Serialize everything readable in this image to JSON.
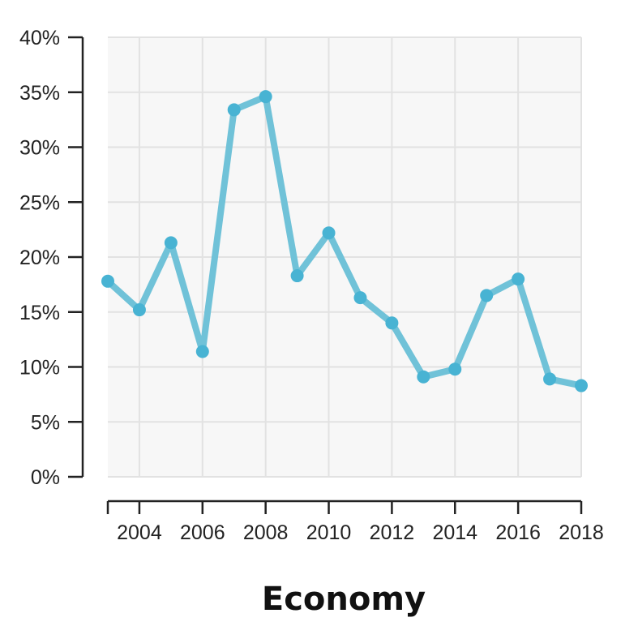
{
  "chart_data": {
    "type": "line",
    "title": "Economy",
    "xlabel": "",
    "ylabel": "",
    "x": [
      2003,
      2004,
      2005,
      2006,
      2007,
      2008,
      2009,
      2010,
      2011,
      2012,
      2013,
      2014,
      2015,
      2016,
      2017,
      2018
    ],
    "series": [
      {
        "values": [
          17.8,
          15.2,
          21.3,
          11.4,
          33.4,
          34.6,
          18.3,
          22.2,
          16.3,
          14.0,
          9.1,
          9.8,
          16.5,
          18.0,
          8.9,
          8.3
        ]
      }
    ],
    "xlim": [
      2003,
      2018
    ],
    "ylim": [
      0,
      40
    ],
    "x_ticks": [
      2004,
      2006,
      2008,
      2010,
      2012,
      2014,
      2016,
      2018
    ],
    "x_tick_labels": [
      "2004",
      "2006",
      "2008",
      "2010",
      "2012",
      "2014",
      "2016",
      "2018"
    ],
    "y_ticks": [
      0,
      5,
      10,
      15,
      20,
      25,
      30,
      35,
      40
    ],
    "y_tick_labels": [
      "0%",
      "5%",
      "10%",
      "15%",
      "20%",
      "25%",
      "30%",
      "35%",
      "40%"
    ],
    "grid": true,
    "legend": "none",
    "colors": {
      "line": "#70c2d8",
      "marker": "#48b3d3",
      "plot_background": "#f7f7f7",
      "grid": "#e2e2e2",
      "axis": "#222222"
    }
  }
}
